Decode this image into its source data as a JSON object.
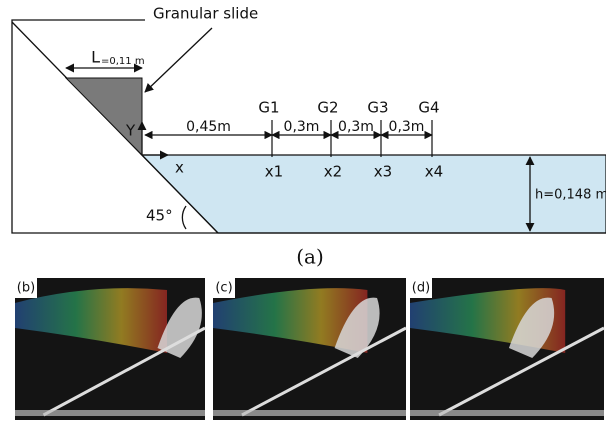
{
  "diagram": {
    "callout": "Granular slide",
    "length_label": {
      "symbol": "L",
      "value": "=0,11 m"
    },
    "axes": {
      "y": "Y",
      "x": "x"
    },
    "gauges": [
      "G1",
      "G2",
      "G3",
      "G4"
    ],
    "positions": [
      "x1",
      "x2",
      "x3",
      "x4"
    ],
    "spacings": [
      "0,45m",
      "0,3m",
      "0,3m",
      "0,3m"
    ],
    "depth": "h=0,148 m",
    "angle": "45°",
    "caption": "(a)"
  },
  "photos": {
    "labels": [
      "(b)",
      "(c)",
      "(d)"
    ]
  }
}
